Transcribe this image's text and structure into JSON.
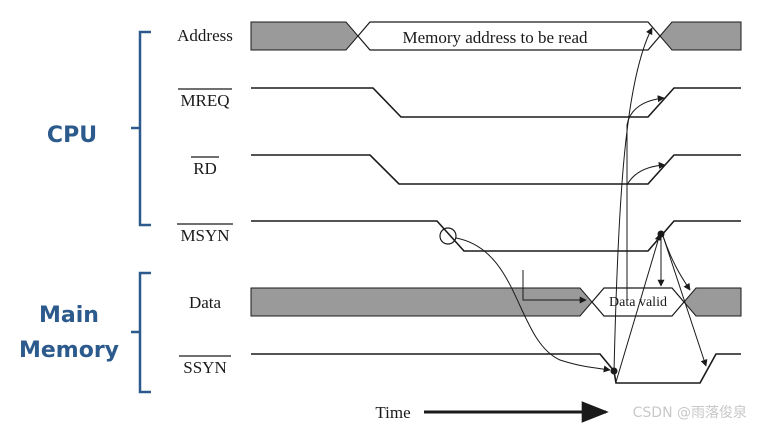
{
  "groups": {
    "cpu": "CPU",
    "main_memory_line1": "Main",
    "main_memory_line2": "Memory"
  },
  "signals": {
    "address": "Address",
    "mreq": "MREQ",
    "rd": "RD",
    "msyn": "MSYN",
    "data": "Data",
    "ssyn": "SSYN"
  },
  "annotations": {
    "address_value": "Memory address to be read",
    "data_value": "Data valid"
  },
  "time_axis": {
    "label": "Time"
  },
  "watermark": "CSDN @雨落俊泉",
  "colors": {
    "group_label": "#2c5a8c",
    "bracket": "#2c5a8c",
    "bus_fill": "#9a9a9a",
    "line": "#1a1a1a",
    "background": "#ffffff",
    "watermark": "#c8c8c8"
  }
}
